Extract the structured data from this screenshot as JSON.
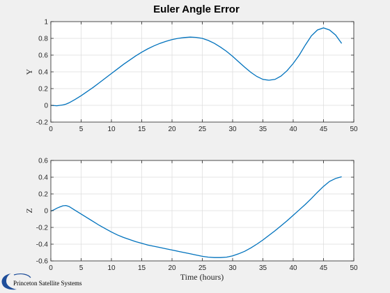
{
  "figure": {
    "background": "#f0f0f0",
    "logo_text": "Princeton Satellite Systems",
    "logo_color": "#1f4e9a"
  },
  "chart_data": [
    {
      "type": "line",
      "title": "Euler Angle Error",
      "xlabel": "",
      "ylabel": "Y",
      "xlim": [
        0,
        50
      ],
      "ylim": [
        -0.2,
        1
      ],
      "xticks": [
        "0",
        "5",
        "10",
        "15",
        "20",
        "25",
        "30",
        "35",
        "40",
        "45",
        "50"
      ],
      "yticks": [
        "-0.2",
        "0",
        "0.2",
        "0.4",
        "0.6",
        "0.8",
        "1"
      ],
      "grid": true,
      "line_color": "#0072bd",
      "series": [
        {
          "x": [
            0,
            1,
            2,
            2.5,
            3,
            4,
            5,
            6,
            7,
            8,
            9,
            10,
            11,
            12,
            13,
            14,
            15,
            16,
            17,
            18,
            19,
            20,
            21,
            22,
            23,
            24,
            25,
            26,
            27,
            28,
            29,
            30,
            31,
            32,
            33,
            34,
            35,
            36,
            37,
            38,
            39,
            40,
            41,
            42,
            43,
            44,
            45,
            46,
            47,
            48
          ],
          "y": [
            0,
            -0.005,
            0.005,
            0.015,
            0.03,
            0.07,
            0.115,
            0.165,
            0.215,
            0.27,
            0.325,
            0.38,
            0.435,
            0.49,
            0.54,
            0.59,
            0.635,
            0.675,
            0.71,
            0.74,
            0.765,
            0.785,
            0.8,
            0.81,
            0.815,
            0.812,
            0.8,
            0.775,
            0.74,
            0.695,
            0.645,
            0.585,
            0.52,
            0.455,
            0.395,
            0.345,
            0.31,
            0.3,
            0.31,
            0.35,
            0.415,
            0.5,
            0.6,
            0.72,
            0.83,
            0.9,
            0.925,
            0.9,
            0.84,
            0.74
          ]
        }
      ]
    },
    {
      "type": "line",
      "title": "",
      "xlabel": "Time (hours)",
      "ylabel": "Z",
      "xlim": [
        0,
        50
      ],
      "ylim": [
        -0.6,
        0.6
      ],
      "xticks": [
        "0",
        "5",
        "10",
        "15",
        "20",
        "25",
        "30",
        "35",
        "40",
        "45",
        "50"
      ],
      "yticks": [
        "-0.6",
        "-0.4",
        "-0.2",
        "0",
        "0.2",
        "0.4",
        "0.6"
      ],
      "grid": true,
      "line_color": "#0072bd",
      "series": [
        {
          "x": [
            0,
            0.5,
            1,
            1.5,
            2,
            2.5,
            3,
            4,
            5,
            6,
            7,
            8,
            9,
            10,
            11,
            12,
            13,
            14,
            15,
            16,
            17,
            18,
            19,
            20,
            21,
            22,
            23,
            24,
            25,
            26,
            27,
            28,
            29,
            30,
            31,
            32,
            33,
            34,
            35,
            36,
            37,
            38,
            39,
            40,
            41,
            42,
            43,
            44,
            45,
            46,
            47,
            48
          ],
          "y": [
            -0.005,
            0.01,
            0.03,
            0.045,
            0.058,
            0.062,
            0.05,
            0.005,
            -0.04,
            -0.085,
            -0.13,
            -0.175,
            -0.215,
            -0.255,
            -0.29,
            -0.32,
            -0.345,
            -0.37,
            -0.39,
            -0.41,
            -0.425,
            -0.44,
            -0.455,
            -0.47,
            -0.485,
            -0.5,
            -0.515,
            -0.53,
            -0.545,
            -0.555,
            -0.56,
            -0.56,
            -0.555,
            -0.54,
            -0.515,
            -0.485,
            -0.445,
            -0.4,
            -0.35,
            -0.295,
            -0.24,
            -0.18,
            -0.12,
            -0.055,
            0.01,
            0.075,
            0.145,
            0.22,
            0.29,
            0.35,
            0.385,
            0.405
          ]
        }
      ]
    }
  ]
}
